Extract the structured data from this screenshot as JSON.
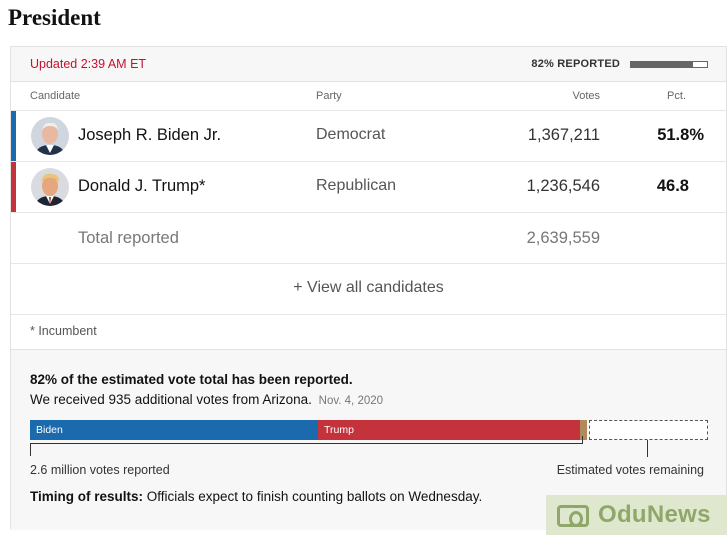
{
  "page": {
    "title": "President"
  },
  "status": {
    "updated": "Updated 2:39 AM ET",
    "reported_label": "82% REPORTED",
    "reported_fraction": 0.82
  },
  "columns": {
    "candidate": "Candidate",
    "party": "Party",
    "votes": "Votes",
    "pct": "Pct."
  },
  "candidates": [
    {
      "name": "Joseph R. Biden Jr.",
      "party": "Democrat",
      "votes": "1,367,211",
      "pct": "51.8%",
      "color": "#1a6aad"
    },
    {
      "name": "Donald J. Trump*",
      "party": "Republican",
      "votes": "1,236,546",
      "pct": "46.8",
      "color": "#c4333b"
    }
  ],
  "total": {
    "label": "Total reported",
    "votes": "2,639,559"
  },
  "view_all": "+ View all candidates",
  "footnote": "* Incumbent",
  "estimate": {
    "headline": "82% of the estimated vote total has been reported.",
    "sub": "We received 935 additional votes from Arizona.",
    "date": "Nov. 4, 2020",
    "bar": [
      {
        "label": "Biden",
        "fraction": 0.425,
        "color": "#1a6aad"
      },
      {
        "label": "Trump",
        "fraction": 0.387,
        "color": "#c4333b"
      },
      {
        "label": "",
        "fraction": 0.01,
        "color": "#b08a5a"
      }
    ],
    "remaining_fraction": 0.178,
    "reported_caption": "2.6 million votes reported",
    "remaining_caption": "Estimated votes remaining"
  },
  "timing": {
    "label": "Timing of results:",
    "text": " Officials expect to finish counting ballots on Wednesday."
  },
  "watermark": {
    "text": "OduNews"
  }
}
